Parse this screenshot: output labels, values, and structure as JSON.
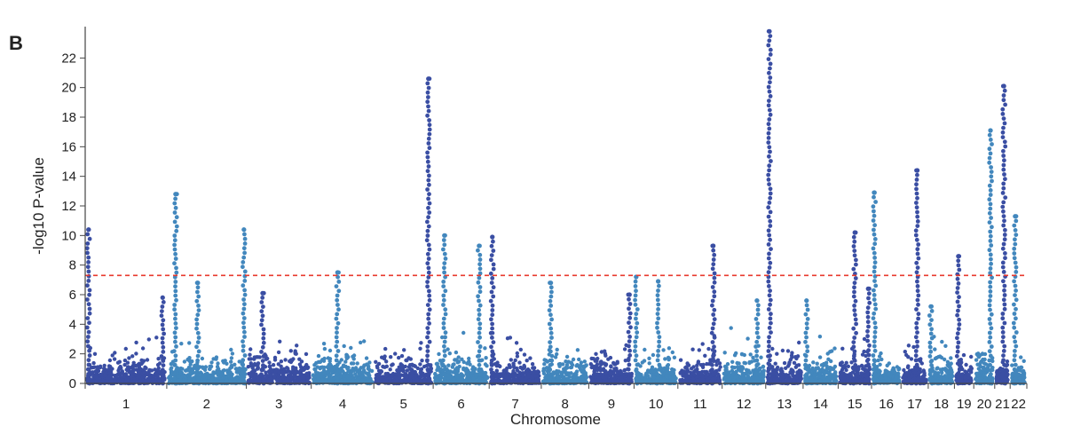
{
  "panel_label": "B",
  "colors": {
    "dark": "#3a4ea3",
    "light": "#4287bd",
    "threshold": "#e83a2e",
    "axis": "#444444"
  },
  "chart_data": {
    "type": "scatter",
    "title": "",
    "xlabel": "Chromosome",
    "ylabel": "-log10 P-value",
    "ylim": [
      0,
      24
    ],
    "yticks": [
      0,
      2,
      4,
      6,
      8,
      10,
      12,
      14,
      16,
      18,
      20,
      22
    ],
    "threshold": 7.3,
    "chromosomes": [
      {
        "label": "1",
        "length": 249,
        "color": "dark",
        "base_max": 5.0,
        "peaks": [
          {
            "pos": 0.04,
            "value": 10.4
          },
          {
            "pos": 0.95,
            "value": 5.8
          }
        ]
      },
      {
        "label": "2",
        "length": 243,
        "color": "light",
        "base_max": 5.0,
        "peaks": [
          {
            "pos": 0.11,
            "value": 12.8
          },
          {
            "pos": 0.39,
            "value": 6.8
          },
          {
            "pos": 0.97,
            "value": 10.4
          }
        ]
      },
      {
        "label": "3",
        "length": 198,
        "color": "dark",
        "base_max": 5.2,
        "peaks": [
          {
            "pos": 0.25,
            "value": 6.1
          }
        ]
      },
      {
        "label": "4",
        "length": 191,
        "color": "light",
        "base_max": 5.0,
        "peaks": [
          {
            "pos": 0.42,
            "value": 7.5
          }
        ]
      },
      {
        "label": "5",
        "length": 181,
        "color": "dark",
        "base_max": 4.8,
        "peaks": [
          {
            "pos": 0.92,
            "value": 20.6
          }
        ]
      },
      {
        "label": "6",
        "length": 171,
        "color": "light",
        "base_max": 5.5,
        "peaks": [
          {
            "pos": 0.2,
            "value": 10.0
          },
          {
            "pos": 0.82,
            "value": 9.3
          }
        ]
      },
      {
        "label": "7",
        "length": 159,
        "color": "dark",
        "base_max": 4.6,
        "peaks": [
          {
            "pos": 0.06,
            "value": 9.9
          }
        ]
      },
      {
        "label": "8",
        "length": 145,
        "color": "light",
        "base_max": 4.8,
        "peaks": [
          {
            "pos": 0.2,
            "value": 6.8
          }
        ]
      },
      {
        "label": "9",
        "length": 138,
        "color": "dark",
        "base_max": 4.8,
        "peaks": [
          {
            "pos": 0.9,
            "value": 6.0
          }
        ]
      },
      {
        "label": "10",
        "length": 134,
        "color": "light",
        "base_max": 5.0,
        "peaks": [
          {
            "pos": 0.05,
            "value": 7.2
          },
          {
            "pos": 0.55,
            "value": 6.9
          }
        ]
      },
      {
        "label": "11",
        "length": 135,
        "color": "dark",
        "base_max": 5.0,
        "peaks": [
          {
            "pos": 0.8,
            "value": 9.3
          }
        ]
      },
      {
        "label": "12",
        "length": 133,
        "color": "light",
        "base_max": 5.0,
        "peaks": [
          {
            "pos": 0.8,
            "value": 5.6
          }
        ]
      },
      {
        "label": "13",
        "length": 114,
        "color": "dark",
        "base_max": 4.8,
        "peaks": [
          {
            "pos": 0.1,
            "value": 23.8
          }
        ]
      },
      {
        "label": "14",
        "length": 107,
        "color": "light",
        "base_max": 4.6,
        "peaks": [
          {
            "pos": 0.1,
            "value": 5.6
          }
        ]
      },
      {
        "label": "15",
        "length": 102,
        "color": "dark",
        "base_max": 5.6,
        "peaks": [
          {
            "pos": 0.5,
            "value": 10.2
          },
          {
            "pos": 0.9,
            "value": 6.4
          }
        ]
      },
      {
        "label": "16",
        "length": 90,
        "color": "light",
        "base_max": 5.0,
        "peaks": [
          {
            "pos": 0.1,
            "value": 12.9
          }
        ]
      },
      {
        "label": "17",
        "length": 83,
        "color": "dark",
        "base_max": 5.0,
        "peaks": [
          {
            "pos": 0.6,
            "value": 14.4
          }
        ]
      },
      {
        "label": "18",
        "length": 80,
        "color": "light",
        "base_max": 5.0,
        "peaks": [
          {
            "pos": 0.1,
            "value": 5.2
          }
        ]
      },
      {
        "label": "19",
        "length": 59,
        "color": "dark",
        "base_max": 4.8,
        "peaks": [
          {
            "pos": 0.2,
            "value": 8.6
          }
        ]
      },
      {
        "label": "20",
        "length": 64,
        "color": "light",
        "base_max": 5.5,
        "peaks": [
          {
            "pos": 0.8,
            "value": 17.1
          }
        ]
      },
      {
        "label": "21",
        "length": 47,
        "color": "dark",
        "base_max": 4.5,
        "peaks": [
          {
            "pos": 0.6,
            "value": 20.1
          }
        ]
      },
      {
        "label": "22",
        "length": 51,
        "color": "light",
        "base_max": 4.6,
        "peaks": [
          {
            "pos": 0.3,
            "value": 11.3
          }
        ]
      }
    ]
  }
}
